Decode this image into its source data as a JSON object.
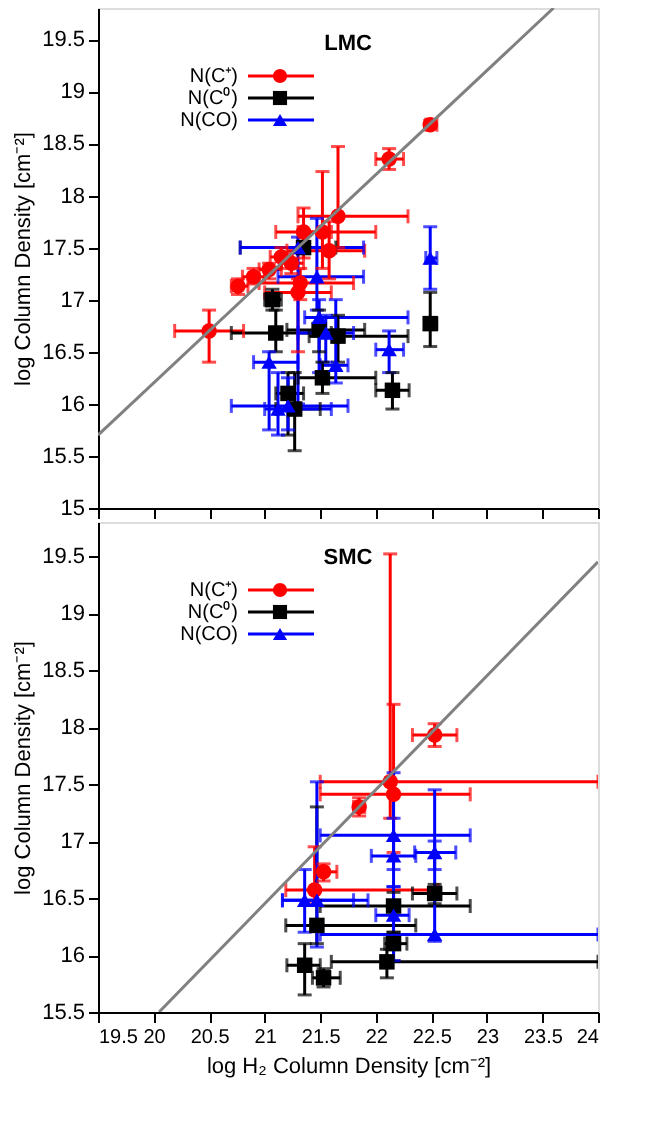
{
  "chart_data": [
    {
      "type": "scatter",
      "title": "LMC",
      "ylabel": "log Column Density [cm⁻²]",
      "xlim": [
        19.5,
        24
      ],
      "ylim": [
        15,
        19.8
      ],
      "xticks": [
        19.5,
        20,
        20.5,
        21,
        21.5,
        22,
        22.5,
        23,
        23.5,
        24
      ],
      "yticks": [
        15,
        15.5,
        16,
        16.5,
        17,
        17.5,
        18,
        18.5,
        19,
        19.5
      ],
      "tick_labels": "y",
      "grid": false,
      "legend": "top left",
      "series": [
        {
          "name": "N(C⁺)",
          "color": "#ff0000",
          "marker": "circle",
          "x": [
            20.5,
            20.76,
            20.9,
            21.04,
            21.15,
            21.24,
            21.35,
            21.66,
            21.52,
            22.12,
            22.49,
            21.58,
            21.32,
            21.3
          ],
          "values": [
            16.7,
            17.13,
            17.22,
            17.29,
            17.41,
            17.35,
            17.65,
            17.8,
            17.65,
            18.35,
            18.68,
            17.47,
            17.16,
            17.07
          ],
          "xerrors": [
            [
              20.19,
              20.81
            ],
            [
              20.7,
              20.85
            ],
            [
              20.8,
              21.0
            ],
            [
              20.95,
              21.15
            ],
            [
              21.05,
              21.25
            ],
            [
              21.15,
              21.35
            ],
            [
              21.1,
              21.6
            ],
            [
              21.3,
              22.29
            ],
            [
              21.3,
              22.0
            ],
            [
              22.0,
              22.25
            ],
            [
              22.45,
              22.55
            ],
            [
              21.2,
              21.9
            ],
            [
              20.95,
              21.8
            ],
            [
              21.0,
              21.6
            ]
          ],
          "errors": [
            [
              16.4,
              16.9
            ],
            [
              17.05,
              17.2
            ],
            [
              17.15,
              17.3
            ],
            [
              17.2,
              17.35
            ],
            [
              17.3,
              17.5
            ],
            [
              17.25,
              17.45
            ],
            [
              17.4,
              17.88
            ],
            [
              17.5,
              18.47
            ],
            [
              17.3,
              18.23
            ],
            [
              18.25,
              18.45
            ],
            [
              18.65,
              18.72
            ],
            [
              17.2,
              17.75
            ],
            [
              17.0,
              17.3
            ],
            [
              16.5,
              17.2
            ]
          ]
        },
        {
          "name": "N(C⁰)",
          "color": "#000000",
          "marker": "square",
          "x": [
            21.35,
            21.07,
            21.1,
            21.49,
            21.66,
            22.15,
            22.49,
            21.52,
            21.21,
            21.27
          ],
          "values": [
            17.5,
            17.0,
            16.68,
            16.71,
            16.65,
            16.13,
            16.77,
            16.25,
            16.1,
            15.95
          ],
          "xerrors": [
            [
              20.78,
              21.64
            ],
            [
              21.0,
              21.15
            ],
            [
              20.7,
              21.6
            ],
            [
              21.2,
              21.9
            ],
            [
              21.4,
              22.29
            ],
            [
              22.0,
              22.3
            ],
            [
              22.45,
              22.55
            ],
            [
              21.3,
              22.0
            ],
            [
              21.1,
              21.35
            ],
            [
              21.1,
              21.5
            ]
          ],
          "errors": [
            null,
            [
              16.9,
              17.1
            ],
            [
              16.5,
              16.9
            ],
            [
              16.5,
              16.9
            ],
            [
              16.4,
              16.85
            ],
            [
              15.95,
              16.3
            ],
            [
              16.55,
              17.07
            ],
            [
              16.1,
              16.4
            ],
            [
              15.7,
              16.3
            ],
            [
              15.55,
              16.3
            ]
          ]
        },
        {
          "name": "N(CO)",
          "color": "#0000ff",
          "marker": "triangle",
          "x": [
            21.3,
            21.47,
            21.49,
            22.49,
            22.12,
            21.04,
            21.21,
            21.12,
            21.64,
            21.55
          ],
          "values": [
            17.5,
            17.22,
            16.83,
            17.4,
            16.52,
            16.4,
            15.98,
            15.95,
            16.37,
            16.68
          ],
          "xerrors": [
            [
              20.78,
              21.89
            ],
            [
              21.12,
              21.89
            ],
            [
              21.36,
              22.29
            ],
            [
              22.45,
              22.55
            ],
            [
              22.0,
              22.25
            ],
            [
              20.9,
              21.3
            ],
            [
              20.7,
              21.75
            ],
            [
              21.0,
              21.6
            ],
            [
              21.5,
              21.75
            ],
            [
              21.3,
              21.8
            ]
          ],
          "errors": [
            [
              16.0,
              17.6
            ],
            [
              16.9,
              17.78
            ],
            [
              16.3,
              17.0
            ],
            [
              17.1,
              17.7
            ],
            [
              16.3,
              16.7
            ],
            [
              15.75,
              16.5
            ],
            [
              15.75,
              16.25
            ],
            [
              15.7,
              16.3
            ],
            [
              16.2,
              17.0
            ],
            [
              16.4,
              16.85
            ]
          ]
        },
        {
          "type": "line",
          "color": "#808080",
          "x": [
            19.5,
            23.6
          ],
          "values": [
            15.7,
            19.8
          ]
        }
      ]
    },
    {
      "type": "scatter",
      "title": "SMC",
      "xlabel": "log H₂ Column Density [cm⁻²]",
      "ylabel": "log Column Density [cm⁻²]",
      "xlim": [
        19.5,
        24
      ],
      "ylim": [
        15.5,
        19.8
      ],
      "xticks": [
        19.5,
        20,
        20.5,
        21,
        21.5,
        22,
        22.5,
        23,
        23.5,
        24
      ],
      "yticks": [
        15.5,
        16,
        16.5,
        17,
        17.5,
        18,
        18.5,
        19,
        19.5
      ],
      "grid": false,
      "legend": "top left",
      "series": [
        {
          "name": "N(C⁺)",
          "color": "#ff0000",
          "marker": "circle",
          "x": [
            22.13,
            22.16,
            22.53,
            21.85,
            21.53,
            21.45
          ],
          "values": [
            17.52,
            17.41,
            17.93,
            17.3,
            16.73,
            16.57
          ],
          "xerrors": [
            [
              21.5,
              24
            ],
            [
              21.5,
              22.85
            ],
            [
              22.33,
              22.73
            ],
            [
              21.8,
              21.9
            ],
            [
              21.45,
              21.65
            ],
            [
              21.19,
              22.56
            ]
          ],
          "errors": [
            [
              17.2,
              19.52
            ],
            [
              16.9,
              18.2
            ],
            [
              17.83,
              18.03
            ],
            [
              17.22,
              17.38
            ],
            [
              16.65,
              16.8
            ],
            [
              16.45,
              16.95
            ]
          ]
        },
        {
          "name": "N(C⁰)",
          "color": "#000000",
          "marker": "square",
          "x": [
            21.36,
            21.53,
            21.47,
            22.1,
            22.53,
            22.16,
            22.16
          ],
          "values": [
            15.91,
            15.8,
            16.26,
            15.94,
            16.54,
            16.43,
            16.1
          ],
          "xerrors": [
            [
              21.2,
              21.5
            ],
            [
              21.43,
              21.68
            ],
            [
              21.19,
              22.36
            ],
            [
              21.6,
              24
            ],
            [
              22.33,
              22.73
            ],
            [
              21.5,
              22.85
            ],
            [
              22.08,
              22.28
            ]
          ],
          "errors": [
            [
              15.65,
              16.1
            ],
            [
              15.72,
              15.88
            ],
            [
              16.1,
              17.3
            ],
            [
              15.8,
              16.05
            ],
            [
              16.45,
              16.62
            ],
            [
              16.2,
              16.55
            ],
            [
              15.95,
              16.2
            ]
          ]
        },
        {
          "name": "N(CO)",
          "color": "#0000ff",
          "marker": "triangle",
          "x": [
            21.47,
            22.16,
            22.16,
            22.53,
            22.53,
            22.16,
            21.36
          ],
          "values": [
            16.48,
            17.05,
            16.87,
            16.9,
            16.18,
            16.35,
            16.48
          ],
          "xerrors": [
            [
              21.16,
              21.93
            ],
            [
              21.5,
              22.85
            ],
            [
              21.96,
              22.36
            ],
            [
              22.35,
              22.72
            ],
            [
              21.5,
              24
            ],
            [
              22.0,
              22.3
            ],
            [
              21.16,
              21.8
            ]
          ],
          "errors": [
            [
              16.07,
              17.52
            ],
            [
              16.6,
              17.6
            ],
            [
              16.75,
              17.2
            ],
            [
              16.75,
              17.0
            ],
            [
              16.12,
              17.45
            ],
            [
              15.95,
              16.6
            ],
            [
              16.2,
              16.75
            ]
          ]
        },
        {
          "type": "line",
          "color": "#808080",
          "x": [
            20.05,
            24
          ],
          "values": [
            15.5,
            19.45
          ]
        }
      ]
    }
  ]
}
